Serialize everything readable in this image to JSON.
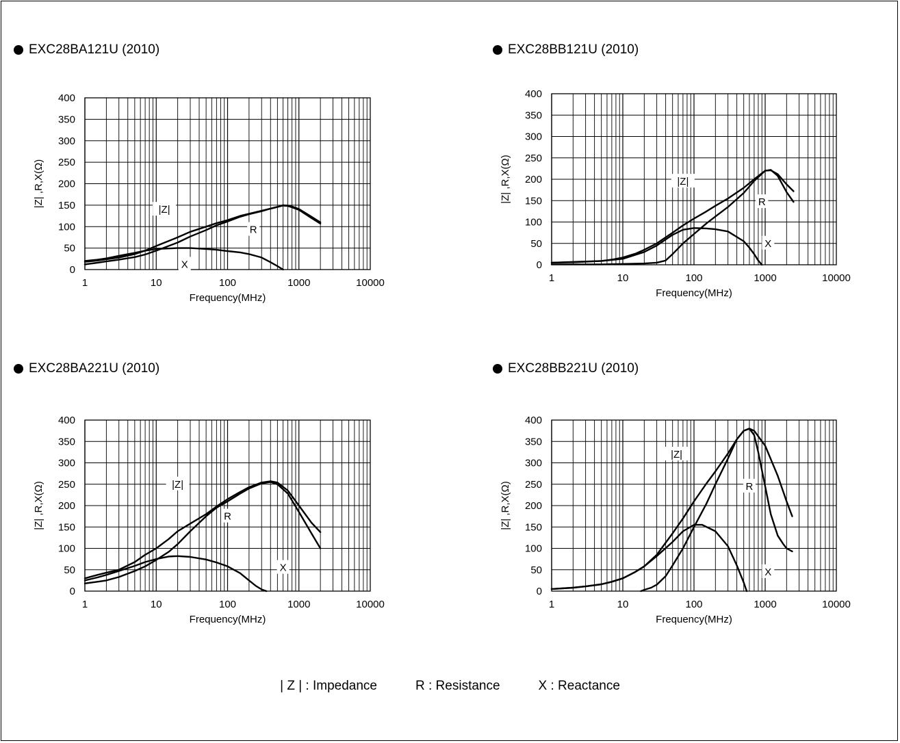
{
  "chart_data": [
    {
      "type": "line",
      "title": "EXC28BA121U (2010)",
      "xlabel": "Frequency(MHz)",
      "ylabel": "|Z| ,R,X(Ω)",
      "xscale": "log",
      "xlim": [
        1,
        10000
      ],
      "ylim": [
        0,
        400
      ],
      "xticks": [
        "1",
        "10",
        "100",
        "1000",
        "10000"
      ],
      "yticks": [
        "0",
        "50",
        "100",
        "150",
        "200",
        "250",
        "300",
        "350",
        "400"
      ],
      "grid": true,
      "series": [
        {
          "name": "|Z|",
          "x": [
            1,
            1.5,
            2,
            3,
            5,
            7,
            10,
            20,
            30,
            50,
            70,
            100,
            150,
            200,
            300,
            400,
            500,
            600,
            700,
            800,
            1000,
            1500,
            2000
          ],
          "y": [
            18,
            21,
            24,
            28,
            36,
            44,
            55,
            75,
            88,
            100,
            108,
            115,
            125,
            130,
            137,
            142,
            146,
            150,
            149,
            147,
            141,
            123,
            110
          ]
        },
        {
          "name": "R",
          "x": [
            1,
            1.5,
            2,
            3,
            5,
            7,
            10,
            20,
            30,
            50,
            70,
            100,
            150,
            200,
            300,
            400,
            500,
            600,
            700,
            800,
            1000,
            1500,
            2000
          ],
          "y": [
            12,
            16,
            19,
            23,
            29,
            35,
            44,
            63,
            77,
            92,
            103,
            112,
            123,
            129,
            136,
            142,
            146,
            149,
            148,
            145,
            139,
            120,
            107
          ]
        },
        {
          "name": "X",
          "x": [
            1,
            1.5,
            2,
            3,
            5,
            7,
            10,
            20,
            30,
            50,
            70,
            100,
            150,
            200,
            300,
            400,
            500,
            600
          ],
          "y": [
            20,
            23,
            26,
            32,
            39,
            44,
            48,
            50,
            50,
            48,
            46,
            43,
            40,
            36,
            28,
            17,
            8,
            0
          ]
        }
      ],
      "labels": [
        {
          "text": "|Z|",
          "x": 13,
          "y": 140
        },
        {
          "text": "R",
          "x": 230,
          "y": 93
        },
        {
          "text": "X",
          "x": 25,
          "y": 12
        }
      ]
    },
    {
      "type": "line",
      "title": "EXC28BB121U (2010)",
      "xlabel": "Frequency(MHz)",
      "ylabel": "|Z| ,R,X(Ω)",
      "xscale": "log",
      "xlim": [
        1,
        10000
      ],
      "ylim": [
        0,
        400
      ],
      "xticks": [
        "1",
        "10",
        "100",
        "1000",
        "10000"
      ],
      "yticks": [
        "0",
        "50",
        "100",
        "150",
        "200",
        "250",
        "300",
        "350",
        "400"
      ],
      "grid": true,
      "series": [
        {
          "name": "|Z|",
          "x": [
            1,
            2,
            3,
            5,
            7,
            10,
            15,
            20,
            30,
            50,
            70,
            100,
            150,
            200,
            300,
            500,
            700,
            1000,
            1200,
            1500,
            2000,
            2500
          ],
          "y": [
            5,
            6,
            7,
            9,
            12,
            17,
            26,
            35,
            50,
            75,
            92,
            108,
            125,
            138,
            155,
            180,
            200,
            220,
            221,
            212,
            188,
            172
          ]
        },
        {
          "name": "R",
          "x": [
            1,
            5,
            10,
            20,
            30,
            40,
            50,
            70,
            100,
            150,
            200,
            300,
            500,
            700,
            1000,
            1200,
            1500,
            2000,
            2500
          ],
          "y": [
            1,
            1,
            2,
            3,
            5,
            10,
            25,
            50,
            72,
            97,
            113,
            135,
            168,
            196,
            220,
            222,
            208,
            170,
            147
          ]
        },
        {
          "name": "X",
          "x": [
            1,
            5,
            10,
            20,
            30,
            50,
            70,
            100,
            150,
            200,
            300,
            500,
            600,
            700,
            800,
            900
          ],
          "y": [
            5,
            9,
            14,
            30,
            45,
            70,
            82,
            86,
            85,
            83,
            78,
            55,
            40,
            25,
            10,
            0
          ]
        }
      ],
      "labels": [
        {
          "text": "|Z|",
          "x": 70,
          "y": 195
        },
        {
          "text": "R",
          "x": 900,
          "y": 147
        },
        {
          "text": "X",
          "x": 1100,
          "y": 50
        }
      ]
    },
    {
      "type": "line",
      "title": "EXC28BA221U (2010)",
      "xlabel": "Frequency(MHz)",
      "ylabel": "|Z| ,R,X(Ω)",
      "xscale": "log",
      "xlim": [
        1,
        10000
      ],
      "ylim": [
        0,
        400
      ],
      "xticks": [
        "1",
        "10",
        "100",
        "1000",
        "10000"
      ],
      "yticks": [
        "0",
        "50",
        "100",
        "150",
        "200",
        "250",
        "300",
        "350",
        "400"
      ],
      "grid": true,
      "series": [
        {
          "name": "|Z|",
          "x": [
            1,
            1.5,
            2,
            3,
            5,
            7,
            10,
            15,
            20,
            30,
            50,
            70,
            100,
            150,
            200,
            300,
            400,
            500,
            700,
            1000,
            1500,
            2000
          ],
          "y": [
            30,
            38,
            43,
            50,
            68,
            85,
            100,
            122,
            140,
            158,
            180,
            198,
            215,
            232,
            243,
            254,
            257,
            254,
            235,
            200,
            160,
            138
          ]
        },
        {
          "name": "R",
          "x": [
            1,
            1.5,
            2,
            3,
            5,
            7,
            10,
            15,
            20,
            30,
            50,
            70,
            100,
            150,
            200,
            300,
            400,
            500,
            700,
            1000,
            1500,
            2000
          ],
          "y": [
            18,
            22,
            25,
            33,
            47,
            58,
            73,
            92,
            110,
            140,
            175,
            195,
            210,
            228,
            240,
            252,
            255,
            250,
            228,
            185,
            135,
            100
          ]
        },
        {
          "name": "X",
          "x": [
            1,
            1.5,
            2,
            3,
            5,
            7,
            10,
            15,
            20,
            30,
            50,
            70,
            100,
            150,
            200,
            250,
            300,
            350
          ],
          "y": [
            25,
            32,
            38,
            47,
            59,
            68,
            75,
            81,
            82,
            80,
            74,
            67,
            58,
            42,
            25,
            12,
            4,
            0
          ]
        }
      ],
      "labels": [
        {
          "text": "|Z|",
          "x": 20,
          "y": 250
        },
        {
          "text": "R",
          "x": 100,
          "y": 175
        },
        {
          "text": "X",
          "x": 600,
          "y": 55
        }
      ]
    },
    {
      "type": "line",
      "title": "EXC28BB221U (2010)",
      "xlabel": "Frequency(MHz)",
      "ylabel": "|Z| ,R,X(Ω)",
      "xscale": "log",
      "xlim": [
        1,
        10000
      ],
      "ylim": [
        0,
        400
      ],
      "xticks": [
        "1",
        "10",
        "100",
        "1000",
        "10000"
      ],
      "yticks": [
        "0",
        "50",
        "100",
        "150",
        "200",
        "250",
        "300",
        "350",
        "400"
      ],
      "grid": true,
      "series": [
        {
          "name": "|Z|",
          "x": [
            1,
            2,
            3,
            5,
            7,
            10,
            15,
            20,
            30,
            50,
            70,
            100,
            150,
            200,
            300,
            400,
            500,
            600,
            700,
            1000,
            1500,
            2000,
            2400
          ],
          "y": [
            5,
            8,
            11,
            16,
            22,
            30,
            45,
            58,
            85,
            135,
            170,
            210,
            252,
            280,
            322,
            355,
            375,
            380,
            375,
            340,
            270,
            210,
            175
          ]
        },
        {
          "name": "R",
          "x": [
            18,
            20,
            25,
            30,
            40,
            50,
            70,
            100,
            150,
            200,
            300,
            400,
            500,
            600,
            700,
            800,
            1000,
            1200,
            1500,
            1800,
            2000,
            2400
          ],
          "y": [
            0,
            3,
            8,
            15,
            35,
            60,
            100,
            150,
            205,
            250,
            310,
            355,
            375,
            380,
            365,
            325,
            245,
            180,
            130,
            110,
            100,
            93
          ]
        },
        {
          "name": "X",
          "x": [
            1,
            2,
            3,
            5,
            7,
            10,
            15,
            20,
            30,
            50,
            70,
            100,
            130,
            200,
            300,
            400,
            500,
            550
          ],
          "y": [
            5,
            8,
            11,
            16,
            22,
            30,
            45,
            58,
            82,
            115,
            140,
            155,
            155,
            140,
            105,
            60,
            20,
            0
          ]
        }
      ],
      "labels": [
        {
          "text": "|Z|",
          "x": 57,
          "y": 320
        },
        {
          "text": "R",
          "x": 600,
          "y": 245
        },
        {
          "text": "X",
          "x": 1100,
          "y": 45
        }
      ]
    }
  ],
  "legend": {
    "impedance": "| Z |  : Impedance",
    "resistance": "R : Resistance",
    "reactance": "X : Reactance"
  }
}
